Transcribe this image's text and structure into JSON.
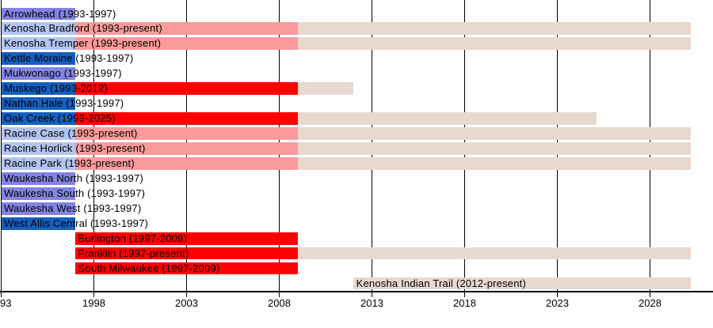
{
  "chart_data": {
    "type": "bar",
    "subtype": "horizontal-timeline-gantt",
    "title": "",
    "xlabel": "",
    "ylabel": "",
    "x_axis": {
      "min_year": 1993,
      "max_year": 2030.2,
      "present_extends_to": 2030.2,
      "gridlines": "on",
      "ticks": [
        {
          "year": 1993,
          "label": "93",
          "align": "left"
        },
        {
          "year": 1998,
          "label": "1998",
          "align": "center"
        },
        {
          "year": 2003,
          "label": "2003",
          "align": "center"
        },
        {
          "year": 2008,
          "label": "2008",
          "align": "center"
        },
        {
          "year": 2013,
          "label": "2013",
          "align": "center"
        },
        {
          "year": 2018,
          "label": "2018",
          "align": "center"
        },
        {
          "year": 2023,
          "label": "2023",
          "align": "center"
        },
        {
          "year": 2028,
          "label": "2028",
          "align": "center"
        }
      ]
    },
    "colors": {
      "blue": "#155FBF",
      "purple": "#8283E4",
      "light_blue": "#B2C4F0",
      "salmon": "#FA9A9A",
      "red": "#FF0000",
      "tan": "#E8D8D0",
      "grid": "#000000",
      "text": "#000000",
      "background": "#FFFFFF"
    },
    "rows": [
      {
        "label": "Arrowhead (1993-1997)",
        "segments": [
          {
            "from": 1993,
            "to": 1997,
            "color": "purple"
          }
        ]
      },
      {
        "label": "Kenosha Bradford (1993-present)",
        "segments": [
          {
            "from": 1993,
            "to": 1997,
            "color": "light_blue"
          },
          {
            "from": 1997,
            "to": 2009,
            "color": "salmon"
          },
          {
            "from": 2009,
            "to": "present",
            "color": "tan"
          }
        ]
      },
      {
        "label": "Kenosha Tremper (1993-present)",
        "segments": [
          {
            "from": 1993,
            "to": 1997,
            "color": "light_blue"
          },
          {
            "from": 1997,
            "to": 2009,
            "color": "salmon"
          },
          {
            "from": 2009,
            "to": "present",
            "color": "tan"
          }
        ]
      },
      {
        "label": "Kettle Moraine (1993-1997)",
        "segments": [
          {
            "from": 1993,
            "to": 1997,
            "color": "blue"
          }
        ]
      },
      {
        "label": "Mukwonago (1993-1997)",
        "segments": [
          {
            "from": 1993,
            "to": 1997,
            "color": "purple"
          }
        ]
      },
      {
        "label": "Muskego (1993-2012)",
        "segments": [
          {
            "from": 1993,
            "to": 1997,
            "color": "blue"
          },
          {
            "from": 1997,
            "to": 2009,
            "color": "red"
          },
          {
            "from": 2009,
            "to": 2012,
            "color": "tan"
          }
        ]
      },
      {
        "label": "Nathan Hale (1993-1997)",
        "segments": [
          {
            "from": 1993,
            "to": 1997,
            "color": "blue"
          }
        ]
      },
      {
        "label": "Oak Creek (1993-2025)",
        "segments": [
          {
            "from": 1993,
            "to": 1997,
            "color": "blue"
          },
          {
            "from": 1997,
            "to": 2009,
            "color": "red"
          },
          {
            "from": 2009,
            "to": 2025.1,
            "color": "tan"
          }
        ]
      },
      {
        "label": "Racine Case (1993-present)",
        "segments": [
          {
            "from": 1993,
            "to": 1997,
            "color": "light_blue"
          },
          {
            "from": 1997,
            "to": 2009,
            "color": "salmon"
          },
          {
            "from": 2009,
            "to": "present",
            "color": "tan"
          }
        ]
      },
      {
        "label": "Racine Horlick (1993-present)",
        "segments": [
          {
            "from": 1993,
            "to": 1997,
            "color": "light_blue"
          },
          {
            "from": 1997,
            "to": 2009,
            "color": "salmon"
          },
          {
            "from": 2009,
            "to": "present",
            "color": "tan"
          }
        ]
      },
      {
        "label": "Racine Park (1993-present)",
        "segments": [
          {
            "from": 1993,
            "to": 1997,
            "color": "light_blue"
          },
          {
            "from": 1997,
            "to": 2009,
            "color": "salmon"
          },
          {
            "from": 2009,
            "to": "present",
            "color": "tan"
          }
        ]
      },
      {
        "label": "Waukesha North (1993-1997)",
        "segments": [
          {
            "from": 1993,
            "to": 1997,
            "color": "purple"
          }
        ]
      },
      {
        "label": "Waukesha South (1993-1997)",
        "segments": [
          {
            "from": 1993,
            "to": 1997,
            "color": "purple"
          }
        ]
      },
      {
        "label": "Waukesha West (1993-1997)",
        "segments": [
          {
            "from": 1993,
            "to": 1997,
            "color": "purple"
          }
        ]
      },
      {
        "label": "West Allis Central (1993-1997)",
        "segments": [
          {
            "from": 1993,
            "to": 1997,
            "color": "blue"
          }
        ]
      },
      {
        "label": "Burlington (1997-2009)",
        "segments": [
          {
            "from": 1997,
            "to": 2009,
            "color": "red"
          }
        ]
      },
      {
        "label": "Franklin (1997-present)",
        "segments": [
          {
            "from": 1997,
            "to": 2009,
            "color": "red"
          },
          {
            "from": 2009,
            "to": "present",
            "color": "tan"
          }
        ]
      },
      {
        "label": "South Milwaukee (1997-2009)",
        "segments": [
          {
            "from": 1997,
            "to": 2009,
            "color": "red"
          }
        ]
      },
      {
        "label": "Kenosha Indian Trail (2012-present)",
        "segments": [
          {
            "from": 2012,
            "to": "present",
            "color": "tan"
          }
        ]
      }
    ]
  }
}
